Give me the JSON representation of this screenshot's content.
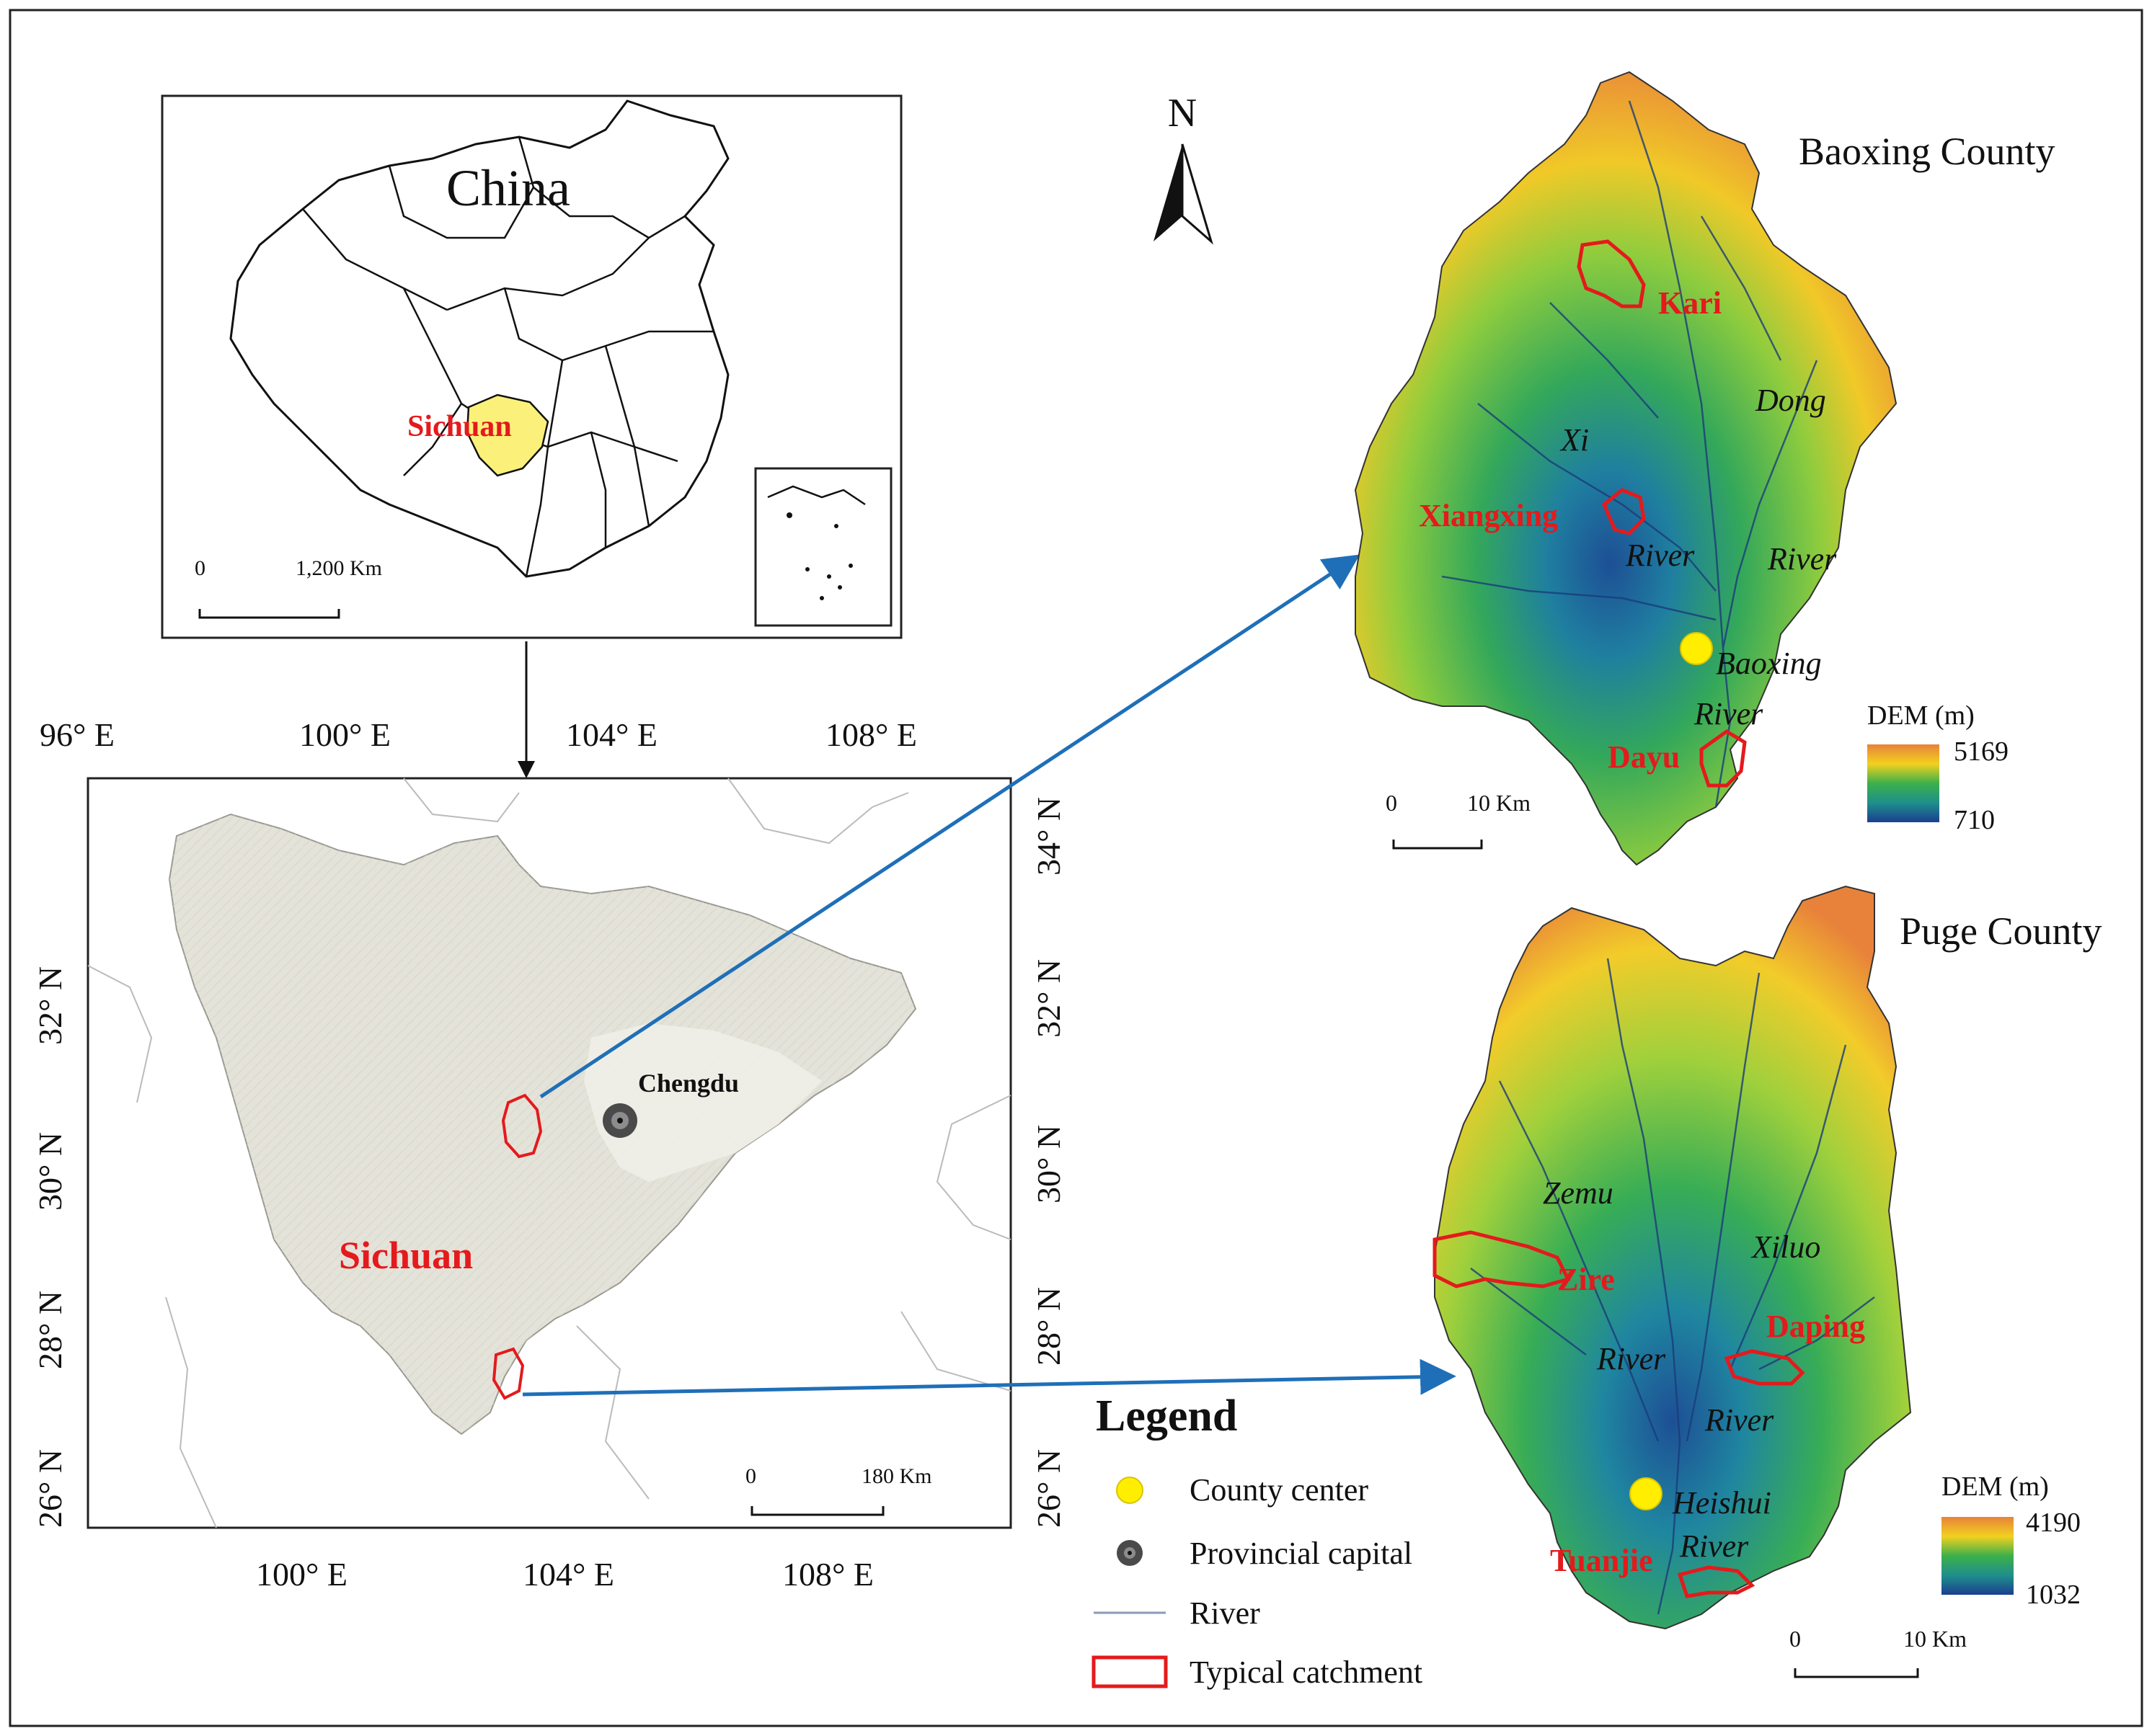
{
  "china_inset": {
    "title": "China",
    "province_label": "Sichuan",
    "scale": {
      "zero": "0",
      "distance": "1,200 Km"
    }
  },
  "sichuan_map": {
    "top_ticks": [
      "96° E",
      "100° E",
      "104° E",
      "108° E"
    ],
    "bottom_ticks": [
      "100° E",
      "104° E",
      "108° E"
    ],
    "left_ticks": [
      "32° N",
      "30° N",
      "28° N",
      "26° N"
    ],
    "right_ticks": [
      "34° N",
      "32° N",
      "30° N",
      "28° N",
      "26° N"
    ],
    "province_label": "Sichuan",
    "capital_label": "Chengdu",
    "scale": {
      "zero": "0",
      "distance": "180 Km"
    }
  },
  "north_arrow": {
    "label": "N"
  },
  "baoxing": {
    "title": "Baoxing County",
    "catchments": [
      "Kari",
      "Xiangxing",
      "Dayu"
    ],
    "rivers": [
      "Xi",
      "River",
      "Dong",
      "River",
      "Baoxing",
      "River"
    ],
    "dem": {
      "title": "DEM (m)",
      "max": "5169",
      "min": "710"
    },
    "scale": {
      "zero": "0",
      "distance": "10 Km"
    }
  },
  "puge": {
    "title": "Puge County",
    "catchments": [
      "Zire",
      "Daping",
      "Tuanjie"
    ],
    "rivers": [
      "Zemu",
      "River",
      "Xiluo",
      "River",
      "Heishui",
      "River"
    ],
    "dem": {
      "title": "DEM (m)",
      "max": "4190",
      "min": "1032"
    },
    "scale": {
      "zero": "0",
      "distance": "10 Km"
    }
  },
  "legend": {
    "title": "Legend",
    "items": [
      {
        "label": "County center",
        "symbol": "yellow-circle"
      },
      {
        "label": "Provincial capital",
        "symbol": "grey-target"
      },
      {
        "label": "River",
        "symbol": "grey-line"
      },
      {
        "label": "Typical catchment",
        "symbol": "red-outline"
      }
    ]
  },
  "colors": {
    "catchment": "#e41a1c",
    "arrow": "#1f6fb8",
    "province_fill": "#fbf17a",
    "county_center": "#ffee00",
    "dem_high": "#e8823a",
    "dem_mid": "#3cb04a",
    "dem_low": "#1b3f8f"
  }
}
